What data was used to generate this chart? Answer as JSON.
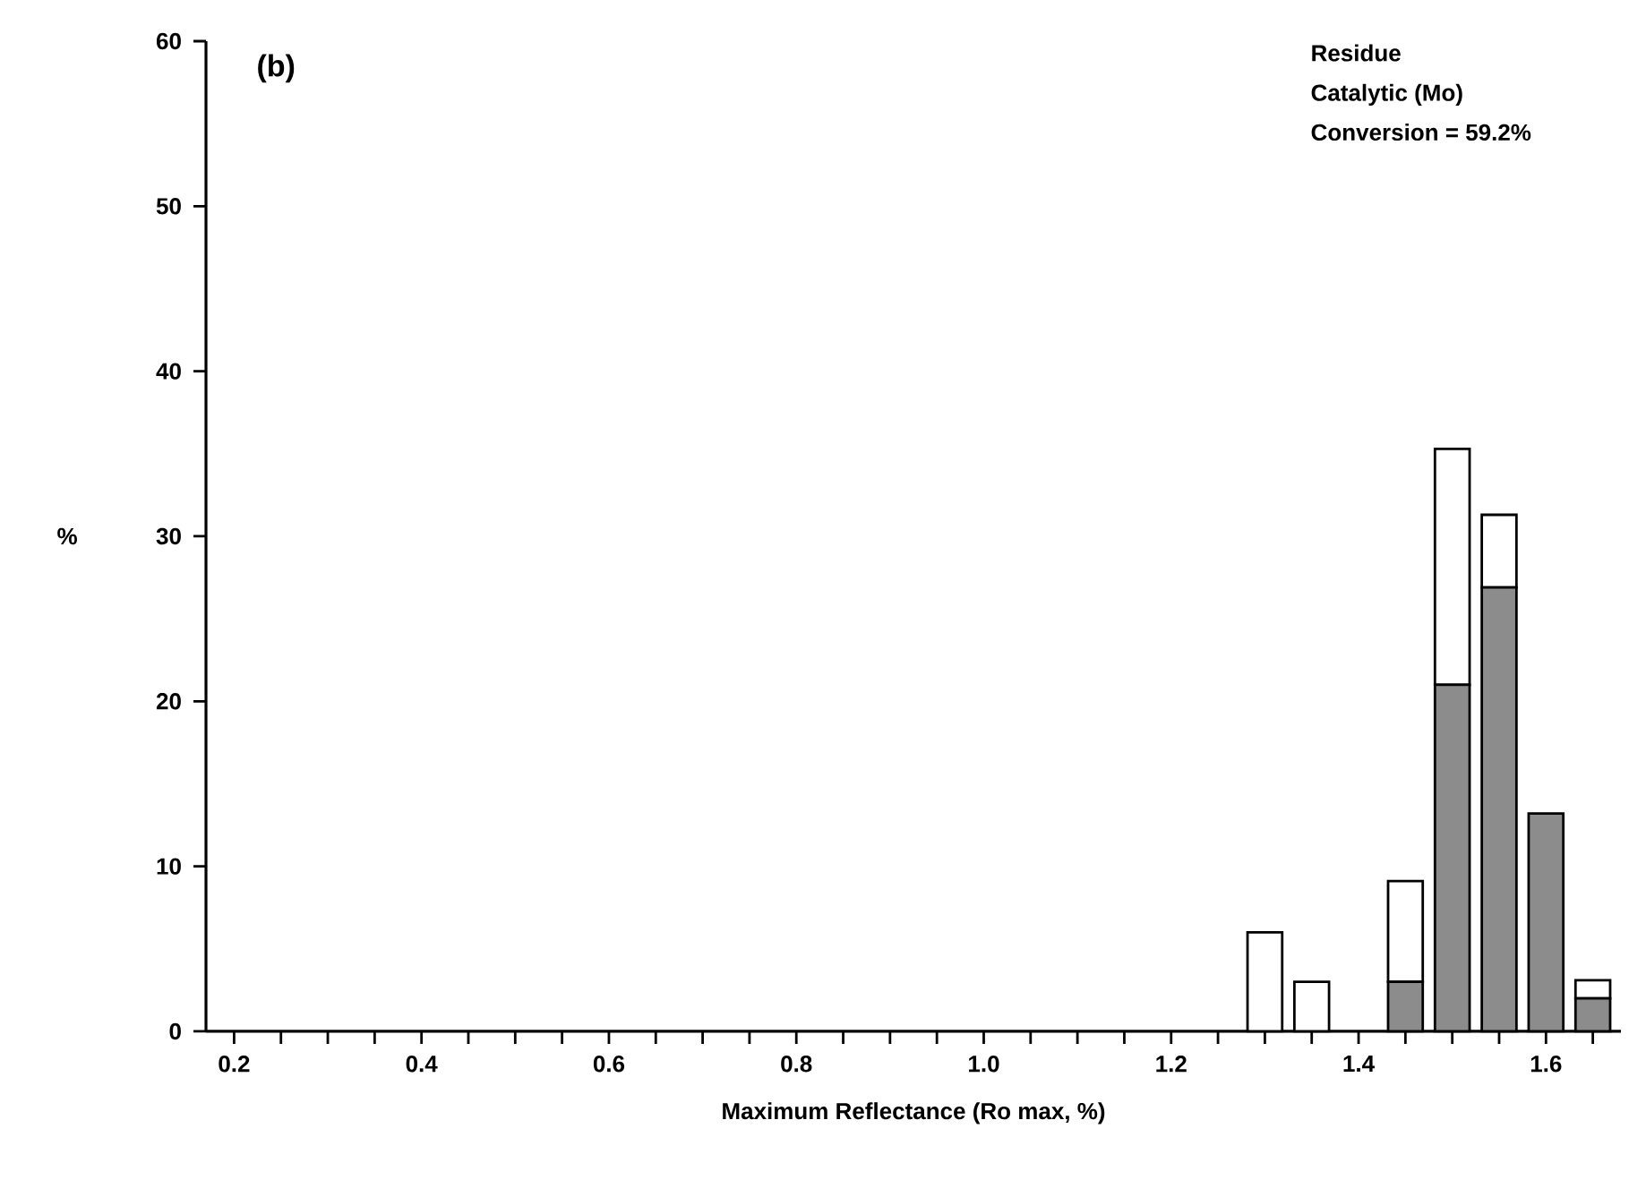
{
  "chart_data": {
    "type": "bar",
    "stacked": true,
    "xlabel": "Maximum Reflectance (Ro max, %)",
    "ylabel": "%",
    "annotations": [
      "(b)",
      "Residue",
      "Catalytic  (Mo)",
      "Conversion  =  59.2%"
    ],
    "x": [
      1.3,
      1.35,
      1.45,
      1.5,
      1.55,
      1.6,
      1.65
    ],
    "series": [
      {
        "color": "#8c8c8c",
        "values": [
          0,
          0,
          3.0,
          21.0,
          26.9,
          13.2,
          2.0
        ]
      },
      {
        "color": "#ffffff",
        "values": [
          6.0,
          3.0,
          6.1,
          14.3,
          4.4,
          0,
          1.1
        ]
      }
    ],
    "xlim": [
      0.17,
      1.68
    ],
    "xticks": [
      0.2,
      {
        "value": 0.25,
        "label": null
      },
      {
        "value": 0.3,
        "label": null
      },
      {
        "value": 0.35,
        "label": null
      },
      0.4,
      {
        "value": 0.45,
        "label": null
      },
      {
        "value": 0.5,
        "label": null
      },
      {
        "value": 0.55,
        "label": null
      },
      0.6,
      {
        "value": 0.65,
        "label": null
      },
      {
        "value": 0.7,
        "label": null
      },
      {
        "value": 0.75,
        "label": null
      },
      0.8,
      {
        "value": 0.85,
        "label": null
      },
      {
        "value": 0.9,
        "label": null
      },
      {
        "value": 0.95,
        "label": null
      },
      {
        "value": 1.0,
        "label": "1.0"
      },
      {
        "value": 1.05,
        "label": null
      },
      {
        "value": 1.1,
        "label": null
      },
      {
        "value": 1.15,
        "label": null
      },
      1.2,
      {
        "value": 1.25,
        "label": null
      },
      {
        "value": 1.3,
        "label": null
      },
      {
        "value": 1.35,
        "label": null
      },
      1.4,
      {
        "value": 1.45,
        "label": null
      },
      {
        "value": 1.5,
        "label": null
      },
      {
        "value": 1.55,
        "label": null
      },
      1.6,
      {
        "value": 1.65,
        "label": null
      }
    ],
    "ylim": [
      0,
      60
    ],
    "yticks": [
      0,
      10,
      20,
      30,
      40,
      50,
      60
    ]
  }
}
